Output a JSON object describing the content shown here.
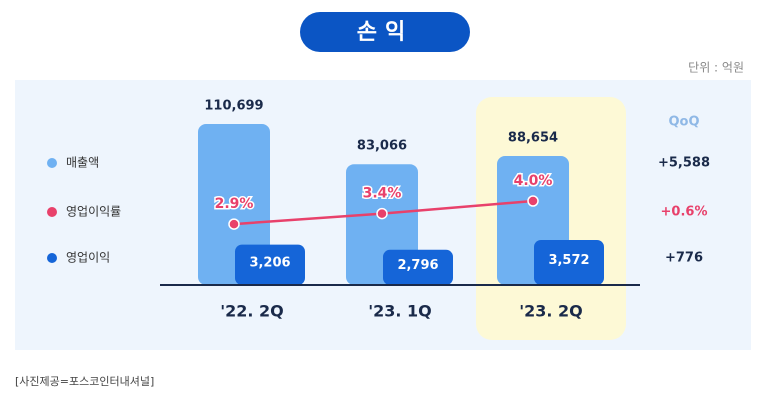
{
  "chart_data": {
    "type": "bar",
    "title": "손익",
    "unit_label": "단위 : 억원",
    "categories": [
      "'22. 2Q",
      "'23. 1Q",
      "'23. 2Q"
    ],
    "series": [
      {
        "name": "매출액",
        "color": "#6fb1f2",
        "values": [
          110699,
          83066,
          88654
        ],
        "value_labels": [
          "110,699",
          "83,066",
          "88,654"
        ]
      },
      {
        "name": "영업이익률",
        "type": "line",
        "color": "#e8416b",
        "values": [
          2.9,
          3.4,
          4.0
        ],
        "value_labels": [
          "2.9%",
          "3.4%",
          "4.0%"
        ]
      },
      {
        "name": "영업이익",
        "color": "#1565d8",
        "values": [
          3206,
          2796,
          3572
        ],
        "value_labels": [
          "3,206",
          "2,796",
          "3,572"
        ]
      }
    ],
    "qoq_header": "QoQ",
    "qoq_labels": [
      "+5,588",
      "+0.6%",
      "+776"
    ],
    "caption": "[사진제공=포스코인터내셔널]"
  }
}
